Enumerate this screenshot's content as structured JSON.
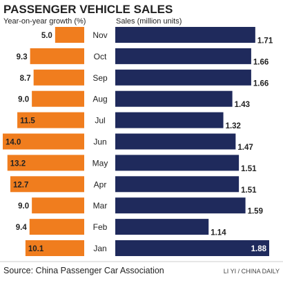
{
  "chart_data": {
    "type": "bar",
    "title": "PASSENGER VEHICLE SALES",
    "left_panel": {
      "label": "Year-on-year growth (%)",
      "xlim": [
        0,
        14
      ]
    },
    "right_panel": {
      "label": "Sales (million units)",
      "xlim": [
        0,
        1.88
      ]
    },
    "categories": [
      "Nov",
      "Oct",
      "Sep",
      "Aug",
      "Jul",
      "Jun",
      "May",
      "Apr",
      "Mar",
      "Feb",
      "Jan"
    ],
    "series": [
      {
        "name": "Year-on-year growth (%)",
        "values": [
          5.0,
          9.3,
          8.7,
          9.0,
          11.5,
          14.0,
          13.2,
          12.7,
          9.0,
          9.4,
          10.1
        ],
        "value_labels": [
          "5.0",
          "9.3",
          "8.7",
          "9.0",
          "11.5",
          "14.0",
          "13.2",
          "12.7",
          "9.0",
          "9.4",
          "10.1"
        ]
      },
      {
        "name": "Sales (million units)",
        "values": [
          1.71,
          1.66,
          1.66,
          1.43,
          1.32,
          1.47,
          1.51,
          1.51,
          1.59,
          1.14,
          1.88
        ],
        "value_labels": [
          "1.71",
          "1.66",
          "1.66",
          "1.43",
          "1.32",
          "1.47",
          "1.51",
          "1.51",
          "1.59",
          "1.14",
          "1.88"
        ]
      }
    ],
    "colors": {
      "growth": "#f07d1e",
      "sales": "#1f2a5c",
      "text": "#222222"
    },
    "source": "Source: China Passenger Car Association",
    "credit": "LI YI / CHINA DAILY"
  }
}
